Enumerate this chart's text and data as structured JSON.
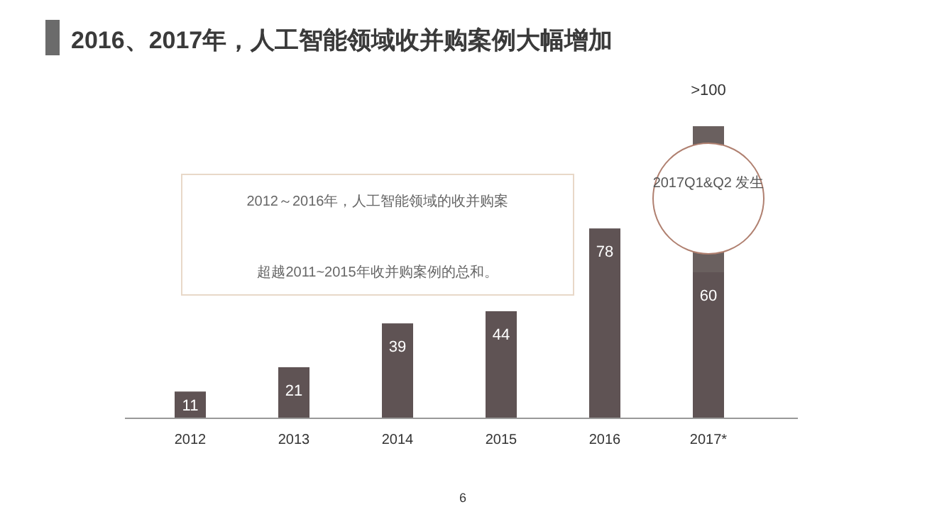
{
  "chart_data": {
    "type": "bar",
    "title": "2016、2017年，人工智能领域收并购案例大幅增加",
    "stacked": true,
    "categories": [
      "2012",
      "2013",
      "2014",
      "2015",
      "2016",
      "2017*"
    ],
    "series": [
      {
        "color": "#5f5354",
        "values": [
          11,
          21,
          39,
          44,
          78,
          60
        ],
        "value_labels": [
          "11",
          "21",
          "39",
          "44",
          "78",
          "60"
        ]
      },
      {
        "color": "#6a605f",
        "values": [
          null,
          null,
          null,
          null,
          null,
          60
        ],
        "value_labels": [
          null,
          null,
          null,
          null,
          null,
          ">100"
        ]
      }
    ],
    "annotations": [
      "2012～2016年，人工智能领域的收并购案",
      "超越2011~2015年收并购案例的总和。",
      "2017Q1&Q2 发生",
      "6"
    ]
  }
}
